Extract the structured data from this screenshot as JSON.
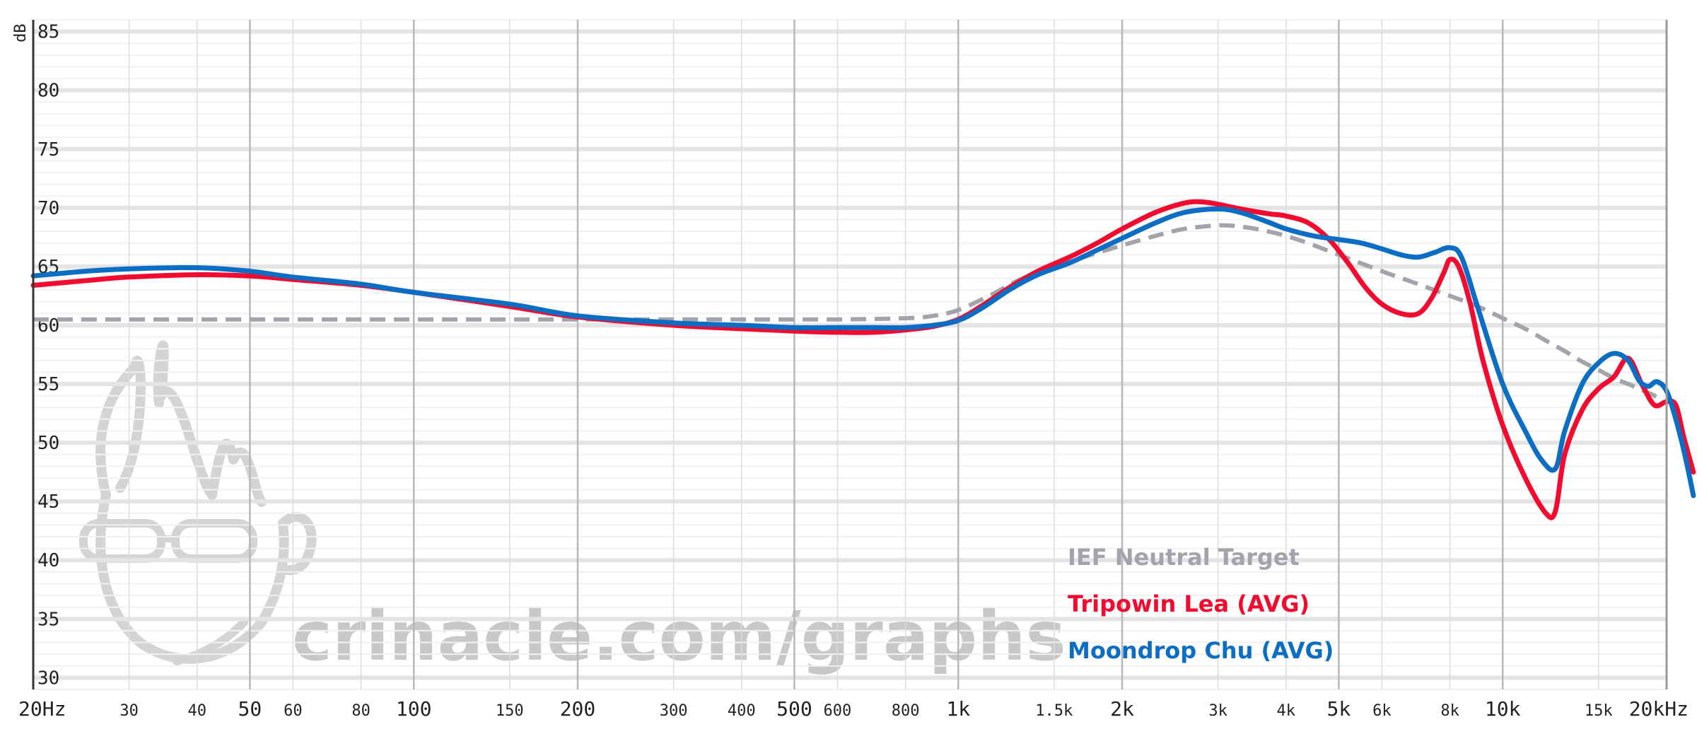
{
  "chart_data": {
    "type": "line",
    "title": "",
    "ylabel": "dB",
    "xlabel": "",
    "x_scale": "log",
    "xlim": [
      20,
      20000
    ],
    "ylim": [
      29,
      86
    ],
    "grid": true,
    "legend_position": "bottom-right",
    "yticks": [
      "85",
      "80",
      "75",
      "70",
      "65",
      "60",
      "55",
      "50",
      "45",
      "40",
      "35",
      "30"
    ],
    "xticks": [
      {
        "value": 20,
        "label": "20Hz",
        "major": true
      },
      {
        "value": 30,
        "label": "30",
        "major": false
      },
      {
        "value": 40,
        "label": "40",
        "major": false
      },
      {
        "value": 50,
        "label": "50",
        "major": true
      },
      {
        "value": 60,
        "label": "60",
        "major": false
      },
      {
        "value": 80,
        "label": "80",
        "major": false
      },
      {
        "value": 100,
        "label": "100",
        "major": true
      },
      {
        "value": 150,
        "label": "150",
        "major": false
      },
      {
        "value": 200,
        "label": "200",
        "major": true
      },
      {
        "value": 300,
        "label": "300",
        "major": false
      },
      {
        "value": 400,
        "label": "400",
        "major": false
      },
      {
        "value": 500,
        "label": "500",
        "major": true
      },
      {
        "value": 600,
        "label": "600",
        "major": false
      },
      {
        "value": 800,
        "label": "800",
        "major": false
      },
      {
        "value": 1000,
        "label": "1k",
        "major": true
      },
      {
        "value": 1500,
        "label": "1.5k",
        "major": false
      },
      {
        "value": 2000,
        "label": "2k",
        "major": true
      },
      {
        "value": 3000,
        "label": "3k",
        "major": false
      },
      {
        "value": 4000,
        "label": "4k",
        "major": false
      },
      {
        "value": 5000,
        "label": "5k",
        "major": true
      },
      {
        "value": 6000,
        "label": "6k",
        "major": false
      },
      {
        "value": 8000,
        "label": "8k",
        "major": false
      },
      {
        "value": 10000,
        "label": "10k",
        "major": true
      },
      {
        "value": 15000,
        "label": "15k",
        "major": false
      },
      {
        "value": 20000,
        "label": "20kHz",
        "major": true
      }
    ],
    "series": [
      {
        "name": "IEF Neutral Target",
        "color": "#a3a3ab",
        "dashed": true,
        "points": [
          [
            20,
            60.5
          ],
          [
            50,
            60.5
          ],
          [
            100,
            60.5
          ],
          [
            200,
            60.5
          ],
          [
            400,
            60.5
          ],
          [
            600,
            60.5
          ],
          [
            800,
            60.6
          ],
          [
            900,
            60.8
          ],
          [
            1000,
            61.3
          ],
          [
            1150,
            62.6
          ],
          [
            1300,
            63.9
          ],
          [
            1500,
            65.0
          ],
          [
            1700,
            65.8
          ],
          [
            2000,
            66.8
          ],
          [
            2300,
            67.6
          ],
          [
            2600,
            68.2
          ],
          [
            3000,
            68.5
          ],
          [
            3300,
            68.4
          ],
          [
            3700,
            68.0
          ],
          [
            4200,
            67.3
          ],
          [
            5000,
            66.0
          ],
          [
            6000,
            64.6
          ],
          [
            7000,
            63.5
          ],
          [
            8000,
            62.5
          ],
          [
            9000,
            61.6
          ],
          [
            10000,
            60.6
          ],
          [
            11000,
            59.7
          ],
          [
            12000,
            58.7
          ],
          [
            13000,
            57.8
          ],
          [
            14000,
            56.9
          ],
          [
            15000,
            56.2
          ],
          [
            16000,
            55.5
          ],
          [
            17000,
            55.0
          ],
          [
            18000,
            54.5
          ],
          [
            19000,
            54.0
          ],
          [
            19800,
            53.5
          ]
        ]
      },
      {
        "name": "Tripowin Lea (AVG)",
        "color": "#f20b2e",
        "dashed": false,
        "points": [
          [
            20,
            63.4
          ],
          [
            25,
            63.8
          ],
          [
            30,
            64.1
          ],
          [
            40,
            64.3
          ],
          [
            50,
            64.2
          ],
          [
            60,
            63.9
          ],
          [
            80,
            63.4
          ],
          [
            100,
            62.8
          ],
          [
            150,
            61.6
          ],
          [
            200,
            60.7
          ],
          [
            300,
            60.0
          ],
          [
            400,
            59.7
          ],
          [
            500,
            59.5
          ],
          [
            600,
            59.4
          ],
          [
            700,
            59.4
          ],
          [
            800,
            59.6
          ],
          [
            900,
            59.9
          ],
          [
            1000,
            60.5
          ],
          [
            1100,
            61.6
          ],
          [
            1250,
            63.3
          ],
          [
            1400,
            64.6
          ],
          [
            1600,
            65.8
          ],
          [
            1800,
            67.0
          ],
          [
            2000,
            68.2
          ],
          [
            2300,
            69.6
          ],
          [
            2600,
            70.4
          ],
          [
            2800,
            70.5
          ],
          [
            3000,
            70.3
          ],
          [
            3300,
            69.9
          ],
          [
            3700,
            69.5
          ],
          [
            4000,
            69.3
          ],
          [
            4400,
            68.7
          ],
          [
            4800,
            67.3
          ],
          [
            5200,
            65.3
          ],
          [
            5600,
            63.2
          ],
          [
            6000,
            61.8
          ],
          [
            6500,
            61.0
          ],
          [
            7000,
            61.0
          ],
          [
            7400,
            62.3
          ],
          [
            7800,
            64.5
          ],
          [
            8000,
            65.6
          ],
          [
            8300,
            65.0
          ],
          [
            8700,
            62.0
          ],
          [
            9200,
            57.0
          ],
          [
            10000,
            51.5
          ],
          [
            11000,
            47.0
          ],
          [
            12000,
            44.0
          ],
          [
            12500,
            44.2
          ],
          [
            13000,
            49.0
          ],
          [
            14000,
            52.8
          ],
          [
            15000,
            54.6
          ],
          [
            16000,
            55.6
          ],
          [
            17000,
            57.2
          ],
          [
            18000,
            55.0
          ],
          [
            19000,
            53.2
          ],
          [
            20000,
            53.5
          ],
          [
            20800,
            53.2
          ],
          [
            21500,
            50.5
          ],
          [
            22400,
            47.5
          ]
        ]
      },
      {
        "name": "Moondrop Chu (AVG)",
        "color": "#0b6ec4",
        "dashed": false,
        "points": [
          [
            20,
            64.2
          ],
          [
            25,
            64.6
          ],
          [
            30,
            64.8
          ],
          [
            40,
            64.9
          ],
          [
            50,
            64.6
          ],
          [
            60,
            64.1
          ],
          [
            80,
            63.5
          ],
          [
            100,
            62.8
          ],
          [
            150,
            61.8
          ],
          [
            200,
            60.8
          ],
          [
            300,
            60.2
          ],
          [
            400,
            60.0
          ],
          [
            500,
            59.8
          ],
          [
            600,
            59.8
          ],
          [
            700,
            59.8
          ],
          [
            800,
            59.8
          ],
          [
            900,
            60.0
          ],
          [
            1000,
            60.4
          ],
          [
            1100,
            61.4
          ],
          [
            1250,
            63.1
          ],
          [
            1400,
            64.3
          ],
          [
            1600,
            65.3
          ],
          [
            1800,
            66.4
          ],
          [
            2000,
            67.4
          ],
          [
            2300,
            68.7
          ],
          [
            2600,
            69.6
          ],
          [
            3000,
            69.9
          ],
          [
            3300,
            69.6
          ],
          [
            3700,
            68.8
          ],
          [
            4000,
            68.2
          ],
          [
            4500,
            67.6
          ],
          [
            5000,
            67.3
          ],
          [
            5500,
            67.0
          ],
          [
            6000,
            66.5
          ],
          [
            6500,
            66.0
          ],
          [
            7000,
            65.8
          ],
          [
            7500,
            66.2
          ],
          [
            8000,
            66.6
          ],
          [
            8400,
            65.8
          ],
          [
            9000,
            61.5
          ],
          [
            10000,
            55.0
          ],
          [
            11000,
            51.0
          ],
          [
            11800,
            48.5
          ],
          [
            12500,
            47.8
          ],
          [
            13000,
            51.0
          ],
          [
            14000,
            55.0
          ],
          [
            15000,
            56.8
          ],
          [
            16000,
            57.6
          ],
          [
            17000,
            57.0
          ],
          [
            17800,
            55.3
          ],
          [
            18500,
            54.8
          ],
          [
            19200,
            55.2
          ],
          [
            20000,
            54.4
          ],
          [
            20800,
            52.0
          ],
          [
            21600,
            49.0
          ],
          [
            22400,
            45.5
          ]
        ]
      }
    ]
  },
  "legend": [
    {
      "label": "IEF Neutral Target",
      "color": "#a3a3ab"
    },
    {
      "label": "Tripowin Lea (AVG)",
      "color": "#f20b2e"
    },
    {
      "label": "Moondrop Chu (AVG)",
      "color": "#0b6ec4"
    }
  ],
  "watermark": {
    "text": "crinacle.com/graphs"
  }
}
